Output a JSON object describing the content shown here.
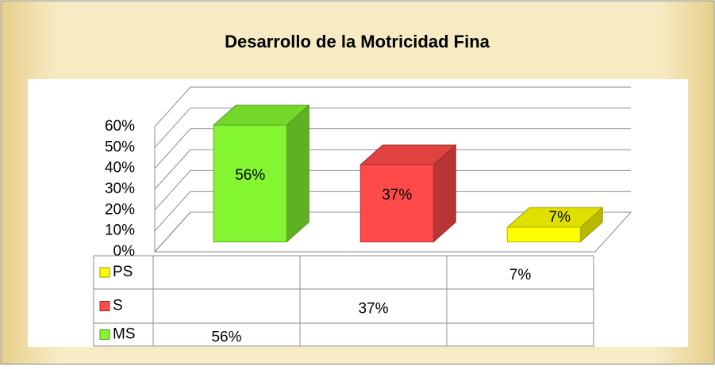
{
  "chart_data": {
    "type": "bar3d",
    "title": "Desarrollo de la Motricidad Fina",
    "categories": [
      null,
      null,
      null
    ],
    "series": [
      {
        "name": "PS",
        "color": "#ffff00",
        "values": [
          null,
          null,
          7
        ],
        "value_labels": [
          null,
          null,
          "7%"
        ]
      },
      {
        "name": "S",
        "color": "#ff4a4a",
        "values": [
          null,
          37,
          null
        ],
        "value_labels": [
          null,
          "37%",
          null
        ]
      },
      {
        "name": "MS",
        "color": "#84f531",
        "values": [
          56,
          null,
          null
        ],
        "value_labels": [
          "56%",
          null,
          null
        ]
      }
    ],
    "ylim": [
      0,
      60
    ],
    "yticks": [
      {
        "value": 0,
        "label": "0%"
      },
      {
        "value": 10,
        "label": "10%"
      },
      {
        "value": 20,
        "label": "20%"
      },
      {
        "value": 30,
        "label": "30%"
      },
      {
        "value": 40,
        "label": "40%"
      },
      {
        "value": 50,
        "label": "50%"
      },
      {
        "value": 60,
        "label": "60%"
      }
    ],
    "grid": true,
    "data_table": true
  }
}
